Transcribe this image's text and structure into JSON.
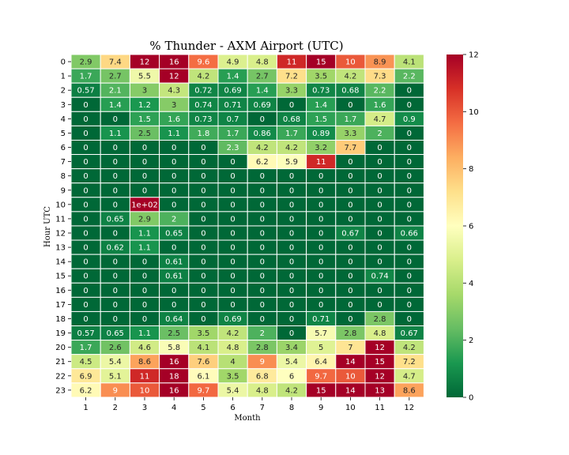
{
  "chart_data": {
    "type": "heatmap",
    "title": "% Thunder - AXM Airport (UTC)",
    "xlabel": "Month",
    "ylabel": "Hour UTC",
    "x_categories": [
      "1",
      "2",
      "3",
      "4",
      "5",
      "6",
      "7",
      "8",
      "9",
      "10",
      "11",
      "12"
    ],
    "y_categories": [
      "0",
      "1",
      "2",
      "3",
      "4",
      "5",
      "6",
      "7",
      "8",
      "9",
      "10",
      "11",
      "12",
      "13",
      "14",
      "15",
      "16",
      "17",
      "18",
      "19",
      "20",
      "21",
      "22",
      "23"
    ],
    "values": [
      [
        2.9,
        7.4,
        12,
        16,
        9.6,
        4.9,
        4.8,
        11,
        15,
        10,
        8.9,
        4.1
      ],
      [
        1.7,
        2.7,
        5.5,
        12,
        4.2,
        1.4,
        2.7,
        7.2,
        3.5,
        4.2,
        7.3,
        2.2
      ],
      [
        0.57,
        2.1,
        3,
        4.3,
        0.72,
        0.69,
        1.4,
        3.3,
        0.73,
        0.68,
        2.2,
        0
      ],
      [
        0,
        1.4,
        1.2,
        3,
        0.74,
        0.71,
        0.69,
        0,
        1.4,
        0,
        1.6,
        0
      ],
      [
        0,
        0,
        1.5,
        1.6,
        0.73,
        0.7,
        0,
        0.68,
        1.5,
        1.7,
        4.7,
        0.9
      ],
      [
        0,
        1.1,
        2.5,
        1.1,
        1.8,
        1.7,
        0.86,
        1.7,
        0.89,
        3.3,
        2,
        0
      ],
      [
        0,
        0,
        0,
        0,
        0,
        2.3,
        4.2,
        4.2,
        3.2,
        7.7,
        0,
        0
      ],
      [
        0,
        0,
        0,
        0,
        0,
        0,
        6.2,
        5.9,
        11,
        0,
        0,
        0
      ],
      [
        0,
        0,
        0,
        0,
        0,
        0,
        0,
        0,
        0,
        0,
        0,
        0
      ],
      [
        0,
        0,
        0,
        0,
        0,
        0,
        0,
        0,
        0,
        0,
        0,
        0
      ],
      [
        0,
        0,
        100,
        0,
        0,
        0,
        0,
        0,
        0,
        0,
        0,
        0
      ],
      [
        0,
        0.65,
        2.9,
        2,
        0,
        0,
        0,
        0,
        0,
        0,
        0,
        0
      ],
      [
        0,
        0,
        1.1,
        0.65,
        0,
        0,
        0,
        0,
        0,
        0.67,
        0,
        0.66
      ],
      [
        0,
        0.62,
        1.1,
        0,
        0,
        0,
        0,
        0,
        0,
        0,
        0,
        0
      ],
      [
        0,
        0,
        0,
        0.61,
        0,
        0,
        0,
        0,
        0,
        0,
        0,
        0
      ],
      [
        0,
        0,
        0,
        0.61,
        0,
        0,
        0,
        0,
        0,
        0,
        0.74,
        0
      ],
      [
        0,
        0,
        0,
        0,
        0,
        0,
        0,
        0,
        0,
        0,
        0,
        0
      ],
      [
        0,
        0,
        0,
        0,
        0,
        0,
        0,
        0,
        0,
        0,
        0,
        0
      ],
      [
        0,
        0,
        0,
        0.64,
        0,
        0.69,
        0,
        0,
        0.71,
        0,
        2.8,
        0
      ],
      [
        0.57,
        0.65,
        1.1,
        2.5,
        3.5,
        4.2,
        2,
        0,
        5.7,
        2.8,
        4.8,
        0.67
      ],
      [
        1.7,
        2.6,
        4.6,
        5.8,
        4.1,
        4.8,
        2.8,
        3.4,
        5,
        7,
        12,
        4.2
      ],
      [
        4.5,
        5.4,
        8.6,
        16,
        7.6,
        4,
        9,
        5.4,
        6.4,
        14,
        15,
        7.2
      ],
      [
        6.9,
        5.1,
        11,
        18,
        6.1,
        3.5,
        6.8,
        6,
        9.7,
        10,
        12,
        4.7
      ],
      [
        6.2,
        9,
        10,
        16,
        9.7,
        5.4,
        4.8,
        4.2,
        15,
        14,
        13,
        8.6
      ]
    ],
    "cell_labels": [
      [
        "2.9",
        "7.4",
        "12",
        "16",
        "9.6",
        "4.9",
        "4.8",
        "11",
        "15",
        "10",
        "8.9",
        "4.1"
      ],
      [
        "1.7",
        "2.7",
        "5.5",
        "12",
        "4.2",
        "1.4",
        "2.7",
        "7.2",
        "3.5",
        "4.2",
        "7.3",
        "2.2"
      ],
      [
        "0.57",
        "2.1",
        "3",
        "4.3",
        "0.72",
        "0.69",
        "1.4",
        "3.3",
        "0.73",
        "0.68",
        "2.2",
        "0"
      ],
      [
        "0",
        "1.4",
        "1.2",
        "3",
        "0.74",
        "0.71",
        "0.69",
        "0",
        "1.4",
        "0",
        "1.6",
        "0"
      ],
      [
        "0",
        "0",
        "1.5",
        "1.6",
        "0.73",
        "0.7",
        "0",
        "0.68",
        "1.5",
        "1.7",
        "4.7",
        "0.9"
      ],
      [
        "0",
        "1.1",
        "2.5",
        "1.1",
        "1.8",
        "1.7",
        "0.86",
        "1.7",
        "0.89",
        "3.3",
        "2",
        "0"
      ],
      [
        "0",
        "0",
        "0",
        "0",
        "0",
        "2.3",
        "4.2",
        "4.2",
        "3.2",
        "7.7",
        "0",
        "0"
      ],
      [
        "0",
        "0",
        "0",
        "0",
        "0",
        "0",
        "6.2",
        "5.9",
        "11",
        "0",
        "0",
        "0"
      ],
      [
        "0",
        "0",
        "0",
        "0",
        "0",
        "0",
        "0",
        "0",
        "0",
        "0",
        "0",
        "0"
      ],
      [
        "0",
        "0",
        "0",
        "0",
        "0",
        "0",
        "0",
        "0",
        "0",
        "0",
        "0",
        "0"
      ],
      [
        "0",
        "0",
        "1e+02",
        "0",
        "0",
        "0",
        "0",
        "0",
        "0",
        "0",
        "0",
        "0"
      ],
      [
        "0",
        "0.65",
        "2.9",
        "2",
        "0",
        "0",
        "0",
        "0",
        "0",
        "0",
        "0",
        "0"
      ],
      [
        "0",
        "0",
        "1.1",
        "0.65",
        "0",
        "0",
        "0",
        "0",
        "0",
        "0.67",
        "0",
        "0.66"
      ],
      [
        "0",
        "0.62",
        "1.1",
        "0",
        "0",
        "0",
        "0",
        "0",
        "0",
        "0",
        "0",
        "0"
      ],
      [
        "0",
        "0",
        "0",
        "0.61",
        "0",
        "0",
        "0",
        "0",
        "0",
        "0",
        "0",
        "0"
      ],
      [
        "0",
        "0",
        "0",
        "0.61",
        "0",
        "0",
        "0",
        "0",
        "0",
        "0",
        "0.74",
        "0"
      ],
      [
        "0",
        "0",
        "0",
        "0",
        "0",
        "0",
        "0",
        "0",
        "0",
        "0",
        "0",
        "0"
      ],
      [
        "0",
        "0",
        "0",
        "0",
        "0",
        "0",
        "0",
        "0",
        "0",
        "0",
        "0",
        "0"
      ],
      [
        "0",
        "0",
        "0",
        "0.64",
        "0",
        "0.69",
        "0",
        "0",
        "0.71",
        "0",
        "2.8",
        "0"
      ],
      [
        "0.57",
        "0.65",
        "1.1",
        "2.5",
        "3.5",
        "4.2",
        "2",
        "0",
        "5.7",
        "2.8",
        "4.8",
        "0.67"
      ],
      [
        "1.7",
        "2.6",
        "4.6",
        "5.8",
        "4.1",
        "4.8",
        "2.8",
        "3.4",
        "5",
        "7",
        "12",
        "4.2"
      ],
      [
        "4.5",
        "5.4",
        "8.6",
        "16",
        "7.6",
        "4",
        "9",
        "5.4",
        "6.4",
        "14",
        "15",
        "7.2"
      ],
      [
        "6.9",
        "5.1",
        "11",
        "18",
        "6.1",
        "3.5",
        "6.8",
        "6",
        "9.7",
        "10",
        "12",
        "4.7"
      ],
      [
        "6.2",
        "9",
        "10",
        "16",
        "9.7",
        "5.4",
        "4.8",
        "4.2",
        "15",
        "14",
        "13",
        "8.6"
      ]
    ],
    "colorbar": {
      "range": [
        0,
        12
      ],
      "ticks": [
        0,
        2,
        4,
        6,
        8,
        10,
        12
      ],
      "colormap": "RdYlGn_r",
      "colors": [
        "#006837",
        "#1a9850",
        "#66bd63",
        "#a6d96a",
        "#d9ef8b",
        "#ffffbf",
        "#fee08b",
        "#fdae61",
        "#f46d43",
        "#d73027",
        "#a50026"
      ]
    },
    "cell_border_color": "#ffffff",
    "grid": false,
    "legend": "colorbar-right"
  }
}
